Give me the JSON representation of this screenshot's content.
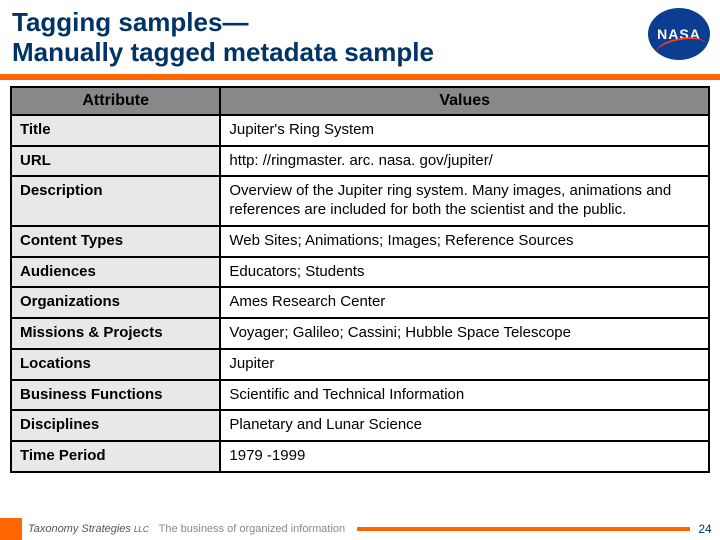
{
  "header": {
    "title_line1": "Tagging samples—",
    "title_line2": "Manually tagged metadata sample",
    "logo_text": "NASA"
  },
  "colors": {
    "title_color": "#003366",
    "accent_bar": "#ff6600",
    "header_row_bg": "#888888",
    "attr_col_bg": "#e8e8e8",
    "border": "#000000",
    "logo_bg": "#0b3d91",
    "logo_swoosh": "#fc3d21"
  },
  "table": {
    "columns": [
      "Attribute",
      "Values"
    ],
    "rows": [
      {
        "attr": "Title",
        "val": "Jupiter's Ring System"
      },
      {
        "attr": "URL",
        "val": "http: //ringmaster. arc. nasa. gov/jupiter/"
      },
      {
        "attr": "Description",
        "val": "Overview of the Jupiter ring system. Many images, animations and references are included for both the scientist and the public."
      },
      {
        "attr": "Content Types",
        "val": "Web Sites; Animations; Images; Reference Sources"
      },
      {
        "attr": "Audiences",
        "val": "Educators; Students"
      },
      {
        "attr": "Organizations",
        "val": "Ames Research Center"
      },
      {
        "attr": "Missions & Projects",
        "val": "Voyager; Galileo; Cassini; Hubble Space Telescope"
      },
      {
        "attr": "Locations",
        "val": "Jupiter"
      },
      {
        "attr": "Business Functions",
        "val": "Scientific and Technical Information"
      },
      {
        "attr": "Disciplines",
        "val": "Planetary and Lunar Science"
      },
      {
        "attr": "Time Period",
        "val": "1979 -1999"
      }
    ]
  },
  "footer": {
    "company": "Taxonomy Strategies",
    "llc": "LLC",
    "tagline": "The business of organized information",
    "page_number": "24"
  }
}
